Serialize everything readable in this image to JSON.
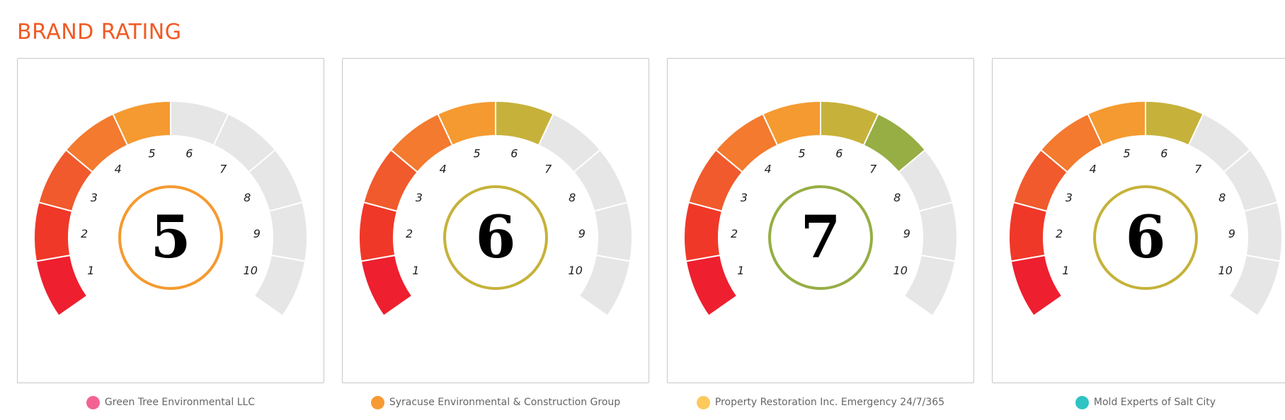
{
  "page": {
    "title": "BRAND RATING"
  },
  "scale": {
    "labels": [
      "1",
      "2",
      "3",
      "4",
      "5",
      "6",
      "7",
      "8",
      "9",
      "10"
    ],
    "segment_colors": [
      "#ee1f2f",
      "#f03828",
      "#f05a2c",
      "#f37a2e",
      "#f59a30",
      "#c6b23a",
      "#96ae44",
      "#6aa14a",
      "#4e9648",
      "#3a8a44"
    ],
    "inactive_color": "#e6e6e6"
  },
  "cards": [
    {
      "score": 5,
      "score_text": "5",
      "ring_color": "#f59a30",
      "brand": "Green Tree Environmental LLC",
      "dot_color": "#f36293"
    },
    {
      "score": 6,
      "score_text": "6",
      "ring_color": "#c6b23a",
      "brand": "Syracuse Environmental & Construction Group",
      "dot_color": "#f79a34"
    },
    {
      "score": 7,
      "score_text": "7",
      "ring_color": "#96ae44",
      "brand": "Property Restoration Inc. Emergency 24/7/365",
      "dot_color": "#fdc95d"
    },
    {
      "score": 6,
      "score_text": "6",
      "ring_color": "#c6b23a",
      "brand": "Mold Experts of Salt City",
      "dot_color": "#2ec4c4"
    }
  ]
}
